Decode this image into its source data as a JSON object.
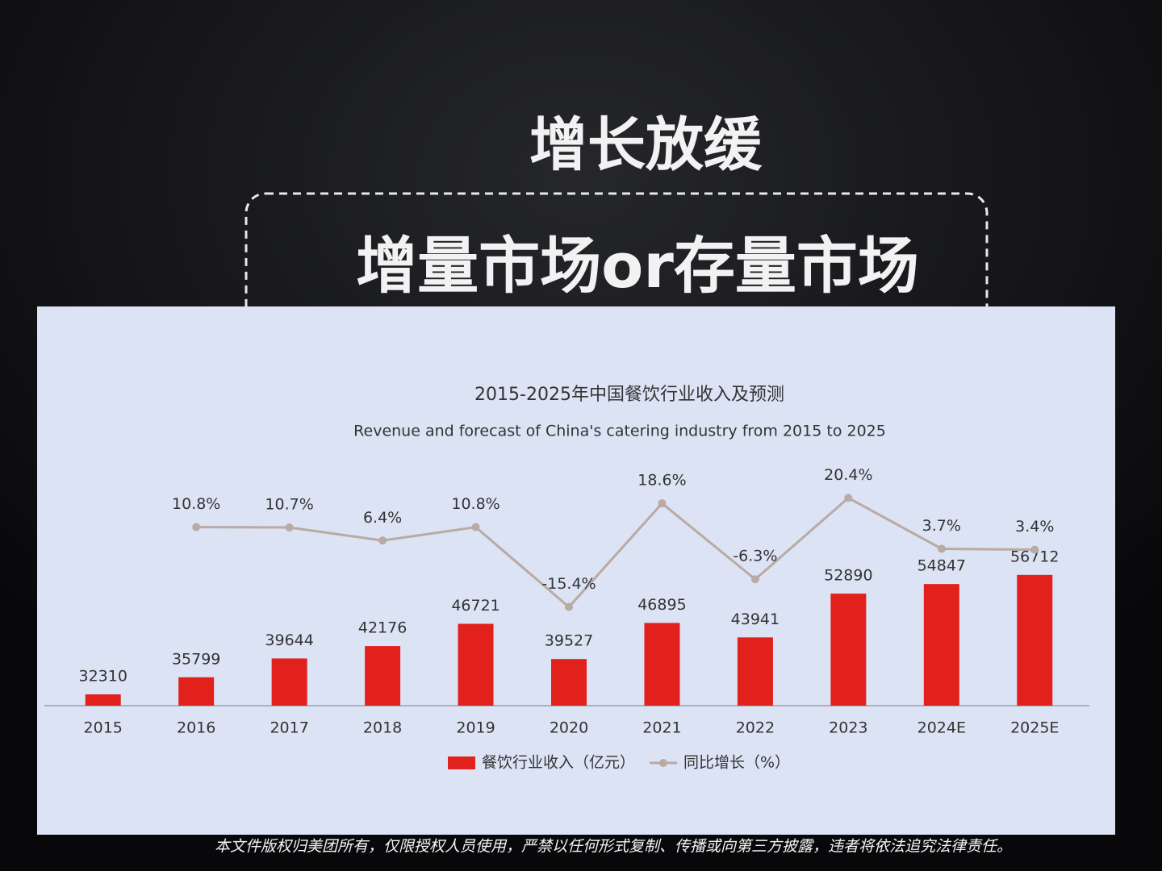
{
  "slide": {
    "title": "增长放缓",
    "subtitle": "增量市场or存量市场",
    "footer": "本文件版权归美团所有，仅限授权人员使用，严禁以任何形式复制、传播或向第三方披露，违者将依法追究法律责任。"
  },
  "chart_data": {
    "type": "bar_line",
    "title": "2015-2025年中国餐饮行业收入及预测",
    "subtitle": "Revenue and forecast of China's catering industry from 2015 to 2025",
    "categories": [
      "2015",
      "2016",
      "2017",
      "2018",
      "2019",
      "2020",
      "2021",
      "2022",
      "2023",
      "2024E",
      "2025E"
    ],
    "series": [
      {
        "name": "餐饮行业收入（亿元）",
        "color": "#e3211c",
        "type": "bar",
        "values": [
          32310,
          35799,
          39644,
          42176,
          46721,
          39527,
          46895,
          43941,
          52890,
          54847,
          56712
        ]
      },
      {
        "name": "同比增长（%）",
        "color": "#b9aaa3",
        "type": "line",
        "axis": "y2",
        "values": [
          null,
          10.8,
          10.7,
          6.4,
          10.8,
          -15.4,
          18.6,
          -6.3,
          20.4,
          3.7,
          3.4
        ],
        "value_labels": [
          null,
          "10.8%",
          "10.7%",
          "6.4%",
          "10.8%",
          "-15.4%",
          "18.6%",
          "-6.3%",
          "20.4%",
          "3.7%",
          "3.4%"
        ]
      }
    ],
    "ylim": [
      30000,
      58000
    ],
    "y2lim": [
      -20,
      25
    ],
    "legend": "bottom"
  }
}
